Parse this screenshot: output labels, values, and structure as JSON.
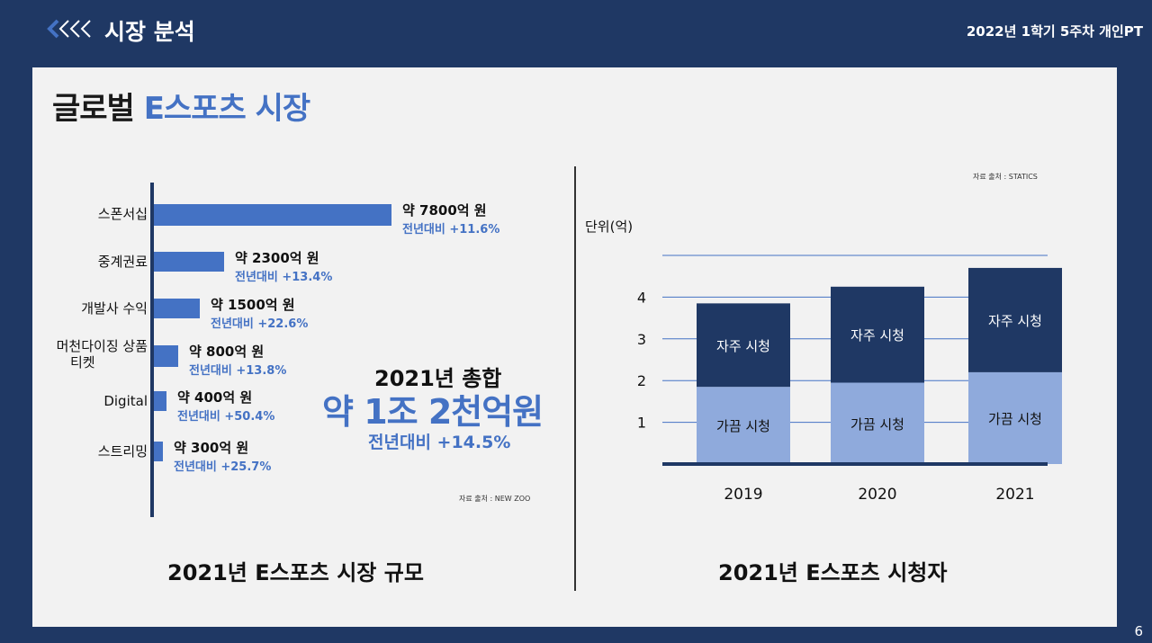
{
  "header": {
    "back_icon": "triple-chevron-left-icon",
    "section_title": "시장 분석",
    "course_label": "2022년 1학기 5주차 개인PT"
  },
  "slide": {
    "title_prefix": "글로벌 ",
    "title_accent": "E스포츠 시장",
    "page_number": "6"
  },
  "market_size": {
    "caption": "2021년 E스포츠 시장 규모",
    "source": "자료 출처 : NEW ZOO",
    "total_title": "2021년 총합",
    "total_value": "약 1조 2천억원",
    "total_yoy": "전년대비 +14.5%",
    "bar_color": "#4472c4"
  },
  "viewers": {
    "caption": "2021년 E스포츠 시청자",
    "source": "자료 출처 : STATICS",
    "unit_label": "단위(억)",
    "colors": {
      "frequent": "#1f3864",
      "occasional": "#8faadc"
    }
  },
  "chart_data": [
    {
      "type": "bar",
      "orientation": "horizontal",
      "categories": [
        "스폰서십",
        "중계권료",
        "개발사 수익",
        "머천다이징 상품 티켓",
        "Digital",
        "스트리밍"
      ],
      "values": [
        7800,
        2300,
        1500,
        800,
        400,
        300
      ],
      "value_labels": [
        "약 7800억 원",
        "약 2300억 원",
        "약 1500억 원",
        "약 800억 원",
        "약 400억 원",
        "약 300억 원"
      ],
      "yoy_labels": [
        "전년대비 +11.6%",
        "전년대비 +13.4%",
        "전년대비 +22.6%",
        "전년대비 +13.8%",
        "전년대비 +50.4%",
        "전년대비 +25.7%"
      ]
    },
    {
      "type": "bar",
      "stacked": true,
      "categories": [
        "2019",
        "2020",
        "2021"
      ],
      "y_ticks": [
        "1",
        "2",
        "3",
        "4"
      ],
      "ylim": [
        0,
        5
      ],
      "ylabel": "단위(억)",
      "grid": true,
      "series": [
        {
          "name": "가끔 시청",
          "values": [
            1.85,
            1.95,
            2.2
          ]
        },
        {
          "name": "자주 시청",
          "values": [
            2.0,
            2.3,
            2.5
          ]
        }
      ]
    }
  ]
}
